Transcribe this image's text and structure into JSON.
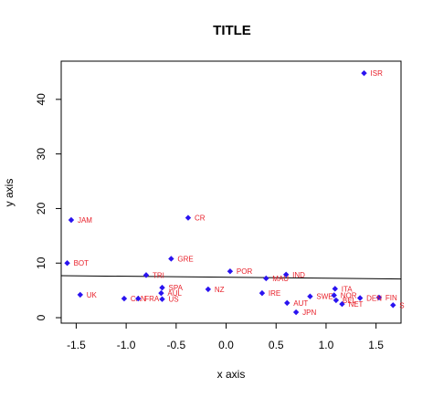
{
  "chart_data": {
    "type": "scatter",
    "title": "TITLE",
    "xlabel": "x axis",
    "ylabel": "y axis",
    "xlim": [
      -1.65,
      1.75
    ],
    "ylim": [
      -1.0,
      47.0
    ],
    "x_ticks": [
      -1.5,
      -1.0,
      -0.5,
      0.0,
      0.5,
      1.0,
      1.5
    ],
    "x_tick_labels": [
      "-1.5",
      "-1.0",
      "-0.5",
      "0.0",
      "0.5",
      "1.0",
      "1.5"
    ],
    "y_ticks": [
      0,
      10,
      20,
      30,
      40
    ],
    "y_tick_labels": [
      "0",
      "10",
      "20",
      "30",
      "40"
    ],
    "grid": false,
    "marker_color": "#2a13f0",
    "label_color": "#e8202a",
    "points": [
      {
        "label": "ISR",
        "x": 1.38,
        "y": 44.8
      },
      {
        "label": "CR",
        "x": -0.38,
        "y": 18.3
      },
      {
        "label": "JAM",
        "x": -1.55,
        "y": 17.9
      },
      {
        "label": "GRE",
        "x": -0.55,
        "y": 10.8
      },
      {
        "label": "BOT",
        "x": -1.59,
        "y": 10.0
      },
      {
        "label": "POR",
        "x": 0.04,
        "y": 8.5
      },
      {
        "label": "TRI",
        "x": -0.8,
        "y": 7.8
      },
      {
        "label": "IND",
        "x": 0.6,
        "y": 7.9
      },
      {
        "label": "MAU",
        "x": 0.4,
        "y": 7.2
      },
      {
        "label": "SPA",
        "x": -0.64,
        "y": 5.5
      },
      {
        "label": "NZ",
        "x": -0.18,
        "y": 5.2
      },
      {
        "label": "ITA",
        "x": 1.09,
        "y": 5.3
      },
      {
        "label": "AUL",
        "x": -0.65,
        "y": 4.5
      },
      {
        "label": "IRE",
        "x": 0.36,
        "y": 4.5
      },
      {
        "label": "UK",
        "x": -1.46,
        "y": 4.2
      },
      {
        "label": "SWE",
        "x": 0.84,
        "y": 3.9
      },
      {
        "label": "NOR",
        "x": 1.08,
        "y": 4.1
      },
      {
        "label": "FIN",
        "x": 1.53,
        "y": 3.7
      },
      {
        "label": "DEN",
        "x": 1.34,
        "y": 3.6
      },
      {
        "label": "BEL",
        "x": 1.1,
        "y": 3.2
      },
      {
        "label": "CAN",
        "x": -1.02,
        "y": 3.5
      },
      {
        "label": "FRA",
        "x": -0.88,
        "y": 3.5
      },
      {
        "label": "US",
        "x": -0.64,
        "y": 3.4
      },
      {
        "label": "AUT",
        "x": 0.61,
        "y": 2.7
      },
      {
        "label": "NET",
        "x": 1.16,
        "y": 2.5
      },
      {
        "label": "S",
        "x": 1.67,
        "y": 2.3
      },
      {
        "label": "JPN",
        "x": 0.7,
        "y": 1.0
      }
    ],
    "regression_line": {
      "x": [
        -1.65,
        1.75
      ],
      "y": [
        7.7,
        7.1
      ]
    }
  }
}
